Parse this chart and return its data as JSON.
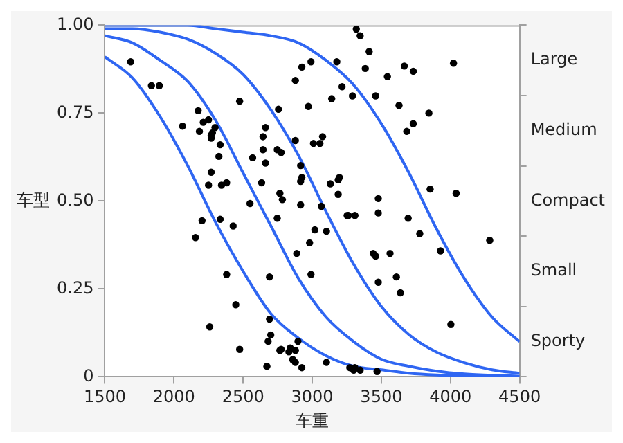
{
  "chart_data": {
    "type": "scatter",
    "xlabel": "车重",
    "ylabel": "车型",
    "xlim": [
      1500,
      4500
    ],
    "xticks": [
      1500,
      2000,
      2500,
      3000,
      3500,
      4000,
      4500
    ],
    "ylim": [
      0,
      1
    ],
    "yticks": [
      {
        "value": 0,
        "label": "0"
      },
      {
        "value": 0.25,
        "label": "0.25"
      },
      {
        "value": 0.5,
        "label": "0.50"
      },
      {
        "value": 0.75,
        "label": "0.75"
      },
      {
        "value": 1,
        "label": "1.00"
      }
    ],
    "y2_categories": [
      "Large",
      "Medium",
      "Compact",
      "Small",
      "Sporty"
    ],
    "grid": false,
    "legend": false,
    "series": [
      {
        "color": "#000000",
        "marker": "circle",
        "x": [
          1687,
          1837,
          1894,
          2475,
          2175,
          2062,
          2212,
          2250,
          2184,
          2297,
          2269,
          2278,
          2269,
          2334,
          2325,
          2269,
          2250,
          2344,
          2381,
          2203,
          2334,
          2756,
          2662,
          2644,
          2644,
          2569,
          2662,
          2747,
          2775,
          2634,
          2766,
          2784,
          2550,
          2747,
          2916,
          3066,
          3253,
          2878,
          2925,
          2991,
          3178,
          3216,
          3141,
          3291,
          2972,
          2878,
          3009,
          3056,
          3075,
          2916,
          2925,
          2916,
          3131,
          3188,
          3197,
          3188,
          3319,
          3347,
          3412,
          3384,
          3544,
          3666,
          3731,
          4022,
          3459,
          3628,
          3844,
          3731,
          3684,
          3478,
          3853,
          4041,
          3478,
          3262,
          3309,
          3694,
          2156,
          2428,
          3019,
          3103,
          2981,
          2888,
          2381,
          2691,
          2991,
          2447,
          2259,
          2691,
          2700,
          2681,
          2897,
          2475,
          2775,
          2766,
          2841,
          2878,
          2831,
          2859,
          2878,
          2672,
          2925,
          3103,
          3272,
          3778,
          4284,
          3441,
          3459,
          3563,
          3928,
          3478,
          3609,
          3638,
          4003,
          3309,
          3300,
          3347,
          3469
        ],
        "values": [
          0.896,
          0.828,
          0.828,
          0.784,
          0.757,
          0.713,
          0.724,
          0.731,
          0.698,
          0.709,
          0.687,
          0.694,
          0.679,
          0.66,
          0.627,
          0.582,
          0.545,
          0.545,
          0.552,
          0.444,
          0.448,
          0.761,
          0.709,
          0.683,
          0.646,
          0.623,
          0.608,
          0.646,
          0.638,
          0.552,
          0.522,
          0.504,
          0.493,
          0.451,
          0.489,
          0.485,
          0.459,
          0.843,
          0.881,
          0.896,
          0.896,
          0.825,
          0.791,
          0.799,
          0.769,
          0.672,
          0.664,
          0.664,
          0.683,
          0.601,
          0.567,
          0.556,
          0.549,
          0.56,
          0.567,
          0.519,
          0.989,
          0.97,
          0.925,
          0.877,
          0.854,
          0.884,
          0.869,
          0.892,
          0.799,
          0.772,
          0.75,
          0.72,
          0.698,
          0.507,
          0.534,
          0.522,
          0.466,
          0.459,
          0.459,
          0.451,
          0.396,
          0.429,
          0.418,
          0.414,
          0.381,
          0.351,
          0.291,
          0.284,
          0.291,
          0.205,
          0.142,
          0.164,
          0.119,
          0.101,
          0.101,
          0.078,
          0.078,
          0.075,
          0.082,
          0.075,
          0.071,
          0.049,
          0.041,
          0.03,
          0.026,
          0.041,
          0.026,
          0.407,
          0.388,
          0.351,
          0.343,
          0.351,
          0.358,
          0.269,
          0.284,
          0.239,
          0.149,
          0.026,
          0.019,
          0.019,
          0.015
        ]
      },
      {
        "type": "line",
        "color": "#2f66f2",
        "x": [
          1500,
          1700,
          1900,
          2100,
          2300,
          2500,
          2700,
          2900,
          3100,
          3300,
          3500,
          3700,
          3900,
          4100,
          4300,
          4500
        ],
        "values": [
          0.91,
          0.85,
          0.74,
          0.6,
          0.44,
          0.3,
          0.18,
          0.11,
          0.06,
          0.03,
          0.02,
          0.01,
          0.005,
          0.003,
          0.001,
          0.001
        ]
      },
      {
        "type": "line",
        "color": "#2f66f2",
        "x": [
          1500,
          1700,
          1900,
          2100,
          2300,
          2500,
          2700,
          2900,
          3100,
          3300,
          3500,
          3700,
          3900,
          4100,
          4300,
          4500
        ],
        "values": [
          0.97,
          0.95,
          0.9,
          0.84,
          0.73,
          0.58,
          0.43,
          0.28,
          0.17,
          0.1,
          0.05,
          0.03,
          0.016,
          0.008,
          0.004,
          0.002
        ]
      },
      {
        "type": "line",
        "color": "#2f66f2",
        "x": [
          1500,
          1700,
          1900,
          2100,
          2300,
          2500,
          2700,
          2900,
          3100,
          3300,
          3500,
          3700,
          3900,
          4100,
          4300,
          4500
        ],
        "values": [
          0.99,
          0.99,
          0.98,
          0.96,
          0.92,
          0.86,
          0.76,
          0.63,
          0.47,
          0.32,
          0.2,
          0.12,
          0.07,
          0.04,
          0.02,
          0.01
        ]
      },
      {
        "type": "line",
        "color": "#2f66f2",
        "x": [
          1500,
          1700,
          1900,
          2100,
          2300,
          2500,
          2700,
          2900,
          3100,
          3300,
          3500,
          3700,
          3900,
          4100,
          4300,
          4500
        ],
        "values": [
          1,
          1,
          1,
          1,
          0.99,
          0.98,
          0.97,
          0.95,
          0.9,
          0.83,
          0.72,
          0.58,
          0.42,
          0.28,
          0.17,
          0.1
        ]
      }
    ]
  }
}
